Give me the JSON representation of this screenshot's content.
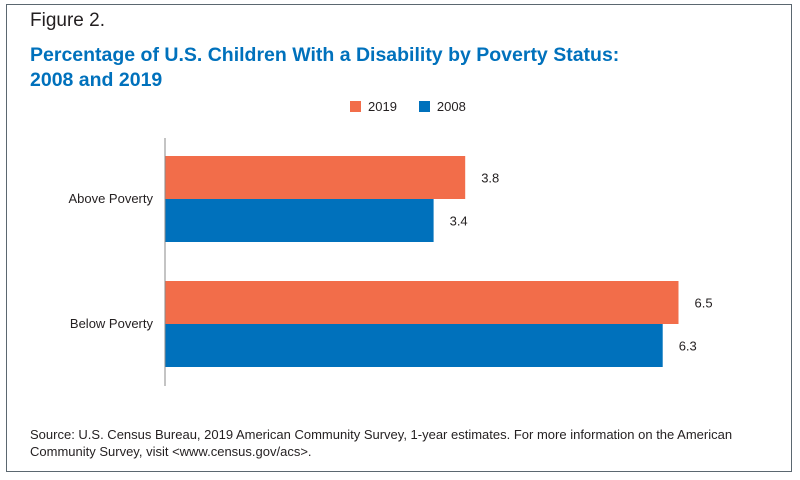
{
  "figure_label": "Figure 2.",
  "title_line1": "Percentage of U.S. Children With a Disability by Poverty Status:",
  "title_line2": "2008 and 2019",
  "source_text": "Source: U.S. Census Bureau, 2019 American Community Survey, 1-year estimates. For more information on the American Community Survey, visit <www.census.gov/acs>.",
  "chart_data": {
    "type": "bar",
    "orientation": "horizontal",
    "categories": [
      "Above Poverty",
      "Below Poverty"
    ],
    "series": [
      {
        "name": "2019",
        "color": "#f26d4a",
        "values": [
          3.8,
          6.5
        ]
      },
      {
        "name": "2008",
        "color": "#0071bc",
        "values": [
          3.4,
          6.3
        ]
      }
    ],
    "xlim": [
      0,
      7
    ],
    "grid": false,
    "legend_position": "top-center"
  }
}
